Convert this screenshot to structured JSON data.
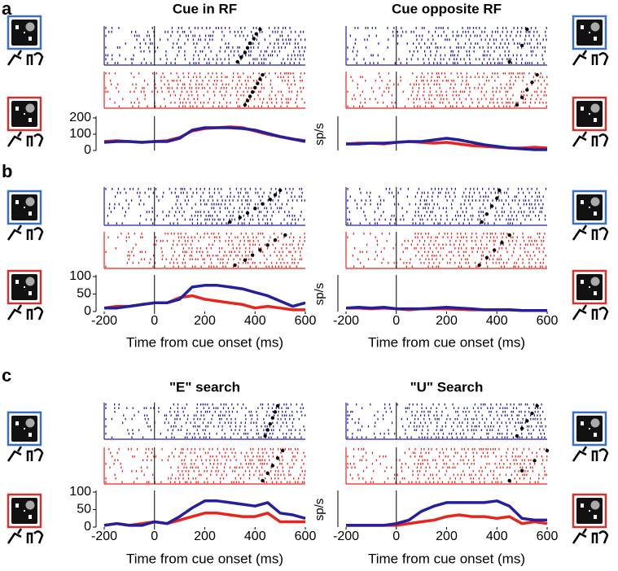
{
  "chart_data": [
    {
      "type": "line",
      "label": "a",
      "title": "Cue in RF",
      "x": [
        -200,
        -150,
        -100,
        -50,
        0,
        50,
        100,
        150,
        200,
        250,
        300,
        350,
        400,
        450,
        500,
        550,
        600
      ],
      "xlim": [
        -200,
        600
      ],
      "ylim": [
        0,
        200
      ],
      "yticks": [
        0,
        100,
        200
      ],
      "series": [
        {
          "color": "#e8241e",
          "values": [
            55,
            60,
            55,
            50,
            55,
            60,
            80,
            120,
            135,
            140,
            145,
            140,
            120,
            100,
            85,
            70,
            60
          ]
        },
        {
          "color": "#24209a",
          "values": [
            50,
            55,
            55,
            50,
            55,
            55,
            75,
            125,
            140,
            140,
            140,
            135,
            125,
            105,
            85,
            70,
            55
          ]
        }
      ],
      "rasters": [
        {
          "color": "#24209a",
          "saccades": [
            330,
            345,
            360,
            370,
            380,
            395,
            405,
            420
          ]
        },
        {
          "color": "#e8241e",
          "saccades": [
            360,
            370,
            380,
            390,
            400,
            410,
            420,
            430
          ]
        }
      ]
    },
    {
      "type": "line",
      "title": "Cue opposite RF",
      "ylabel": "sp/s",
      "x": [
        -200,
        -150,
        -100,
        -50,
        0,
        50,
        100,
        150,
        200,
        250,
        300,
        350,
        400,
        450,
        500,
        550,
        600
      ],
      "xlim": [
        -200,
        600
      ],
      "ylim": [
        0,
        200
      ],
      "series": [
        {
          "color": "#e8241e",
          "values": [
            40,
            45,
            45,
            40,
            50,
            55,
            50,
            45,
            50,
            40,
            30,
            25,
            20,
            15,
            15,
            20,
            15
          ]
        },
        {
          "color": "#24209a",
          "values": [
            40,
            40,
            45,
            45,
            50,
            55,
            55,
            65,
            75,
            65,
            50,
            35,
            25,
            15,
            10,
            5,
            5
          ]
        }
      ],
      "rasters": [
        {
          "color": "#24209a",
          "saccades": [
            450,
            500,
            520
          ]
        },
        {
          "color": "#e8241e",
          "saccades": [
            480,
            500,
            520,
            540,
            560
          ]
        }
      ]
    },
    {
      "type": "line",
      "label": "b",
      "xlabel": "Time from cue onset (ms)",
      "x": [
        -200,
        -150,
        -100,
        -50,
        0,
        50,
        100,
        150,
        200,
        250,
        300,
        350,
        400,
        450,
        500,
        550,
        600
      ],
      "xlim": [
        -200,
        600
      ],
      "xticks": [
        -200,
        0,
        200,
        400,
        600
      ],
      "ylim": [
        0,
        100
      ],
      "yticks": [
        0,
        50,
        100
      ],
      "series": [
        {
          "color": "#e8241e",
          "values": [
            10,
            15,
            15,
            20,
            25,
            25,
            40,
            45,
            35,
            30,
            25,
            20,
            10,
            15,
            10,
            5,
            5
          ]
        },
        {
          "color": "#24209a",
          "values": [
            10,
            10,
            15,
            20,
            25,
            25,
            35,
            70,
            75,
            75,
            70,
            65,
            55,
            45,
            30,
            15,
            25
          ]
        }
      ],
      "rasters": [
        {
          "color": "#24209a",
          "saccades": [
            300,
            340,
            370,
            400,
            430,
            460,
            480,
            500
          ]
        },
        {
          "color": "#e8241e",
          "saccades": [
            320,
            360,
            390,
            420,
            450,
            480,
            520
          ]
        }
      ]
    },
    {
      "type": "line",
      "ylabel": "sp/s",
      "xlabel": "Time from cue onset (ms)",
      "x": [
        -200,
        -150,
        -100,
        -50,
        0,
        50,
        100,
        150,
        200,
        250,
        300,
        350,
        400,
        450,
        500,
        550,
        600
      ],
      "xlim": [
        -200,
        600
      ],
      "xticks": [
        -200,
        0,
        200,
        400,
        600
      ],
      "ylim": [
        0,
        100
      ],
      "series": [
        {
          "color": "#e8241e",
          "values": [
            10,
            10,
            8,
            10,
            8,
            5,
            8,
            8,
            8,
            6,
            5,
            5,
            5,
            5,
            3,
            3,
            3
          ]
        },
        {
          "color": "#24209a",
          "values": [
            10,
            12,
            10,
            12,
            8,
            8,
            8,
            10,
            12,
            10,
            8,
            5,
            5,
            5,
            3,
            3,
            3
          ]
        }
      ],
      "rasters": [
        {
          "color": "#24209a",
          "saccades": [
            340,
            360,
            380,
            400,
            410
          ]
        },
        {
          "color": "#e8241e",
          "saccades": [
            330,
            360,
            390,
            420,
            450
          ]
        }
      ]
    },
    {
      "type": "line",
      "label": "c",
      "title": "\"E\" search",
      "xlabel": "Time from cue onset (ms)",
      "x": [
        -200,
        -150,
        -100,
        -50,
        0,
        50,
        100,
        150,
        200,
        250,
        300,
        350,
        400,
        450,
        500,
        550,
        600
      ],
      "xlim": [
        -200,
        600
      ],
      "xticks": [
        -200,
        0,
        200,
        400,
        600
      ],
      "ylim": [
        0,
        100
      ],
      "yticks": [
        0,
        50,
        100
      ],
      "series": [
        {
          "color": "#e8241e",
          "values": [
            5,
            10,
            5,
            10,
            15,
            10,
            20,
            30,
            40,
            40,
            35,
            30,
            30,
            40,
            15,
            15,
            15
          ]
        },
        {
          "color": "#24209a",
          "values": [
            5,
            10,
            5,
            5,
            15,
            10,
            30,
            55,
            75,
            75,
            70,
            65,
            60,
            70,
            40,
            35,
            25
          ]
        }
      ],
      "rasters": [
        {
          "color": "#24209a",
          "saccades": [
            440,
            450,
            460,
            470,
            480,
            490
          ]
        },
        {
          "color": "#e8241e",
          "saccades": [
            430,
            450,
            470,
            490,
            510
          ]
        }
      ]
    },
    {
      "type": "line",
      "title": "\"U\" Search",
      "ylabel": "sp/s",
      "xlabel": "Time from cue onset (ms)",
      "x": [
        -200,
        -150,
        -100,
        -50,
        0,
        50,
        100,
        150,
        200,
        250,
        300,
        350,
        400,
        450,
        500,
        550,
        600
      ],
      "xlim": [
        -200,
        600
      ],
      "xticks": [
        -200,
        0,
        200,
        400,
        600
      ],
      "ylim": [
        0,
        100
      ],
      "series": [
        {
          "color": "#e8241e",
          "values": [
            5,
            5,
            5,
            5,
            5,
            10,
            15,
            20,
            30,
            35,
            30,
            30,
            25,
            30,
            10,
            15,
            10
          ]
        },
        {
          "color": "#24209a",
          "values": [
            5,
            5,
            5,
            5,
            10,
            20,
            45,
            60,
            70,
            70,
            70,
            70,
            75,
            60,
            25,
            20,
            20
          ]
        }
      ],
      "rasters": [
        {
          "color": "#24209a",
          "saccades": [
            480,
            500,
            520,
            540,
            560
          ]
        },
        {
          "color": "#e8241e",
          "saccades": [
            450,
            500,
            550,
            600
          ]
        }
      ]
    }
  ]
}
